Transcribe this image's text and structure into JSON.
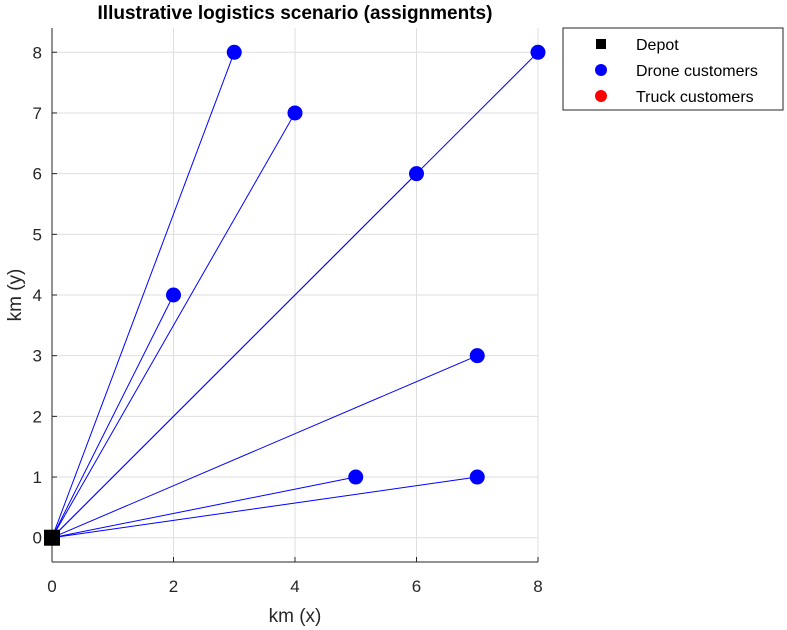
{
  "chart_data": {
    "type": "scatter",
    "title": "Illustrative logistics scenario (assignments)",
    "xlabel": "km (x)",
    "ylabel": "km (y)",
    "xlim": [
      0,
      8
    ],
    "ylim": [
      -0.4,
      8.4
    ],
    "xticks": [
      0,
      2,
      4,
      6,
      8
    ],
    "yticks": [
      0,
      1,
      2,
      3,
      4,
      5,
      6,
      7,
      8
    ],
    "grid": true,
    "legend_position": "outside top-right",
    "series": [
      {
        "name": "Depot",
        "marker": "square",
        "color": "#000000",
        "points": [
          [
            0,
            0
          ]
        ]
      },
      {
        "name": "Drone customers",
        "marker": "circle",
        "color": "#0000ff",
        "points": [
          [
            3,
            8
          ],
          [
            4,
            7
          ],
          [
            8,
            8
          ],
          [
            6,
            6
          ],
          [
            2,
            4
          ],
          [
            7,
            3
          ],
          [
            5,
            1
          ],
          [
            7,
            1
          ]
        ]
      },
      {
        "name": "Truck customers",
        "marker": "circle",
        "color": "#ff0000",
        "points": []
      }
    ],
    "assignment_lines": {
      "color": "#0000ff",
      "from": [
        0,
        0
      ],
      "to": [
        [
          3,
          8
        ],
        [
          4,
          7
        ],
        [
          8,
          8
        ],
        [
          6,
          6
        ],
        [
          2,
          4
        ],
        [
          7,
          3
        ],
        [
          5,
          1
        ],
        [
          7,
          1
        ]
      ]
    },
    "legend": [
      "Depot",
      "Drone customers",
      "Truck customers"
    ]
  }
}
